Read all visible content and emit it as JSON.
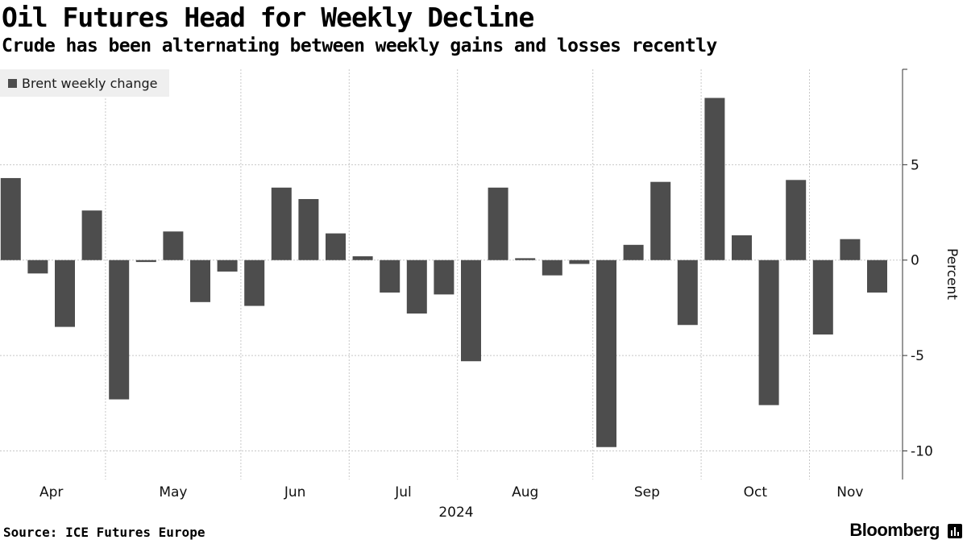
{
  "header": {
    "title": "Oil Futures Head for Weekly Decline",
    "subtitle": "Crude has been alternating between weekly gains and losses recently"
  },
  "footer": {
    "source": "Source: ICE Futures Europe",
    "brand": "Bloomberg"
  },
  "colors": {
    "bar": "#4d4d4d",
    "grid": "#c8c8c8",
    "legend_bg": "#efefef"
  },
  "chart_data": {
    "type": "bar",
    "title": "Oil Futures Head for Weekly Decline",
    "subtitle": "Crude has been alternating between weekly gains and losses recently",
    "legend": [
      "Brent weekly change"
    ],
    "legend_position": "top-left",
    "ylabel": "Percent",
    "y_axis_side": "right",
    "ylim": [
      -11.5,
      10
    ],
    "yticks": [
      -10,
      -5,
      0,
      5
    ],
    "xlabel": "2024",
    "month_labels": [
      "Apr",
      "May",
      "Jun",
      "Jul",
      "Aug",
      "Sep",
      "Oct",
      "Nov"
    ],
    "month_start_week_index": [
      0,
      4,
      9,
      13,
      17,
      22,
      26,
      30
    ],
    "grid": true,
    "series": [
      {
        "name": "Brent weekly change",
        "values": [
          4.3,
          -0.7,
          -3.5,
          2.6,
          -7.3,
          -0.1,
          1.5,
          -2.2,
          -0.6,
          -2.4,
          3.8,
          3.2,
          1.4,
          0.2,
          -1.7,
          -2.8,
          -1.8,
          -5.3,
          3.8,
          0.1,
          -0.8,
          -0.2,
          -9.8,
          0.8,
          4.1,
          -3.4,
          8.5,
          1.3,
          -7.6,
          4.2,
          -3.9,
          1.1,
          -1.7
        ]
      }
    ]
  }
}
